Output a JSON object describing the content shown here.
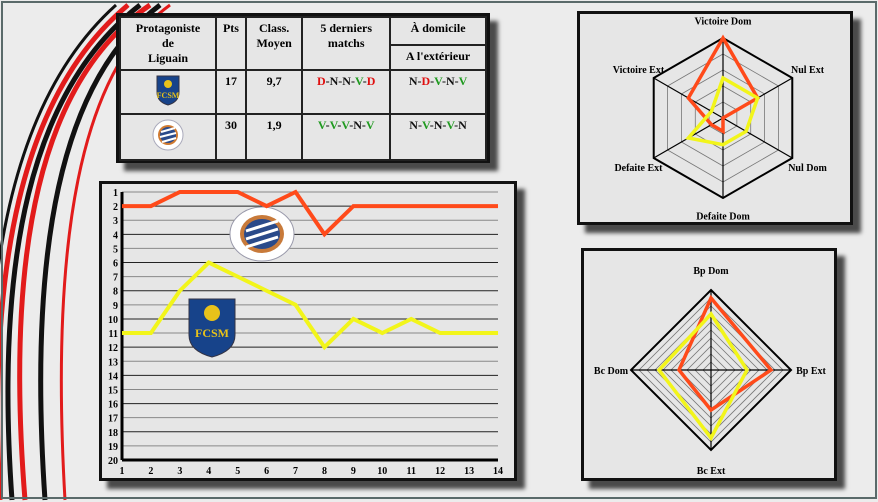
{
  "table": {
    "headers": {
      "team": "Protagoniste de Liguain",
      "team_lines": [
        "Protagoniste",
        "de",
        "Liguain"
      ],
      "pts": "Pts",
      "class": "Class. Moyen",
      "class_lines": [
        "Class.",
        "Moyen"
      ],
      "last5": "5 derniers matchs",
      "last5_lines": [
        "5 derniers",
        "matchs"
      ],
      "home": "À domicile",
      "away": "A l'extérieur"
    },
    "rows": [
      {
        "logo": "fcsm-sochaux-logo",
        "pts": "17",
        "class": "9,7",
        "last5": [
          "D",
          "N",
          "N",
          "V",
          "D"
        ],
        "home_away": [
          "N",
          "D",
          "V",
          "N",
          "V"
        ]
      },
      {
        "logo": "montpellier-logo",
        "pts": "30",
        "class": "1,9",
        "last5": [
          "V",
          "V",
          "V",
          "N",
          "V"
        ],
        "home_away": [
          "N",
          "V",
          "N",
          "V",
          "N"
        ]
      }
    ],
    "result_colors": {
      "V": "#1f9a1f",
      "D": "#e01010",
      "N": "#111111"
    }
  },
  "colors": {
    "montpellier": "#ff4a1a",
    "sochaux": "#f2f51a"
  },
  "chart_data": [
    {
      "type": "line",
      "x": [
        1,
        2,
        3,
        4,
        5,
        6,
        7,
        8,
        9,
        10,
        11,
        12,
        13,
        14
      ],
      "ylim": [
        20,
        1
      ],
      "y_inverted": true,
      "grid": true,
      "y_ticks": [
        1,
        2,
        3,
        4,
        5,
        6,
        7,
        8,
        9,
        10,
        11,
        12,
        13,
        14,
        15,
        16,
        17,
        18,
        19,
        20
      ],
      "series": [
        {
          "team": "montpellier",
          "color": "#ff4a1a",
          "values": [
            2,
            2,
            1,
            1,
            1,
            2,
            1,
            4,
            2,
            2,
            2,
            2,
            2,
            2
          ]
        },
        {
          "team": "sochaux",
          "color": "#f2f51a",
          "values": [
            11,
            11,
            8,
            6,
            7,
            8,
            9,
            12,
            10,
            11,
            10,
            11,
            11,
            11
          ]
        }
      ]
    },
    {
      "type": "radar",
      "axes": [
        "Victoire Dom",
        "Nul Ext",
        "Nul Dom",
        "Defaite Dom",
        "Defaite Ext",
        "Victoire Ext"
      ],
      "rmax": 6,
      "series": [
        {
          "team": "montpellier",
          "color": "#ff4a1a",
          "values": [
            6,
            3,
            0,
            1,
            1,
            3
          ]
        },
        {
          "team": "sochaux",
          "color": "#f2f51a",
          "values": [
            3,
            3,
            2,
            2,
            3,
            1
          ]
        }
      ]
    },
    {
      "type": "radar",
      "axes": [
        "Bp Dom",
        "Bp Ext",
        "Bc Ext",
        "Bc Dom"
      ],
      "rmax": 10,
      "series": [
        {
          "team": "montpellier",
          "color": "#ff4a1a",
          "values": [
            9,
            7.5,
            5,
            4
          ]
        },
        {
          "team": "sochaux",
          "color": "#f2f51a",
          "values": [
            7,
            4.5,
            8.5,
            6.5
          ]
        }
      ]
    }
  ]
}
